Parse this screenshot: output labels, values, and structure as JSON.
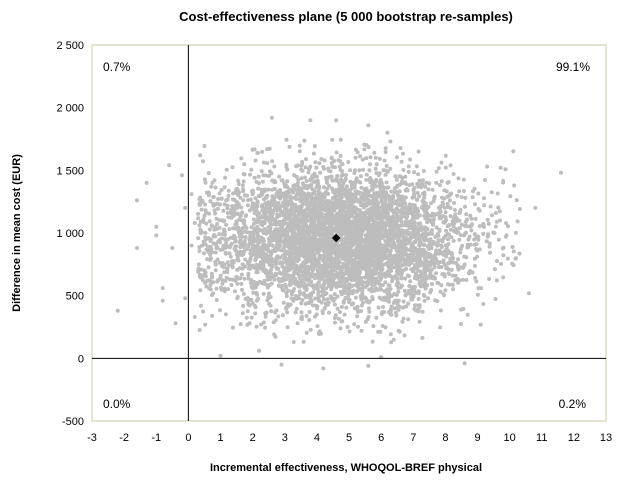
{
  "chart_data": {
    "type": "scatter",
    "title": "Cost-effectiveness plane (5 000 bootstrap re-samples)",
    "xlabel": "Incremental effectiveness, WHOQOL-BREF physical",
    "ylabel": "Difference in mean cost (EUR)",
    "xlim": [
      -3,
      13
    ],
    "ylim": [
      -500,
      2500
    ],
    "x_ticks": [
      "-3",
      "-2",
      "-1",
      "0",
      "1",
      "2",
      "3",
      "4",
      "5",
      "6",
      "7",
      "8",
      "9",
      "10",
      "11",
      "12",
      "13"
    ],
    "y_ticks": [
      "-500",
      "0",
      "500",
      "1 000",
      "1 500",
      "2 000",
      "2 500"
    ],
    "grid": false,
    "quadrant_labels": {
      "top_left": "0.7%",
      "top_right": "99.1%",
      "bottom_left": "0.0%",
      "bottom_right": "0.2%"
    },
    "bootstrap_samples": 5000,
    "cloud_mean": {
      "x": 4.7,
      "y": 950
    },
    "cloud_sd": {
      "x": 2.0,
      "y": 280
    },
    "point_estimate": {
      "x": 4.6,
      "y": 960
    },
    "colors": {
      "points": "#bdbdbd",
      "estimate": "#000000",
      "frame": "#c8c8a0",
      "axis": "#000000"
    },
    "outliers": [
      {
        "x": -2.2,
        "y": 380
      },
      {
        "x": -1.6,
        "y": 880
      },
      {
        "x": -1.6,
        "y": 1260
      },
      {
        "x": -1.3,
        "y": 1400
      },
      {
        "x": -1.0,
        "y": 980
      },
      {
        "x": -1.0,
        "y": 1050
      },
      {
        "x": -0.8,
        "y": 560
      },
      {
        "x": -0.8,
        "y": 460
      },
      {
        "x": -0.6,
        "y": 1540
      },
      {
        "x": -0.5,
        "y": 880
      },
      {
        "x": -0.4,
        "y": 280
      },
      {
        "x": -0.2,
        "y": 1460
      },
      {
        "x": -0.1,
        "y": 480
      },
      {
        "x": -0.1,
        "y": 1200
      },
      {
        "x": 0.2,
        "y": 1080
      },
      {
        "x": 0.2,
        "y": 330
      },
      {
        "x": 0.1,
        "y": 1310
      },
      {
        "x": 0.1,
        "y": 900
      },
      {
        "x": 11.6,
        "y": 1480
      },
      {
        "x": 10.8,
        "y": 1200
      },
      {
        "x": 10.6,
        "y": 520
      },
      {
        "x": 10.2,
        "y": 800
      },
      {
        "x": 9.7,
        "y": 1100
      },
      {
        "x": 9.3,
        "y": 1530
      },
      {
        "x": 3.8,
        "y": 1900
      },
      {
        "x": 4.6,
        "y": 1900
      },
      {
        "x": 5.6,
        "y": 1860
      },
      {
        "x": 2.6,
        "y": 1920
      },
      {
        "x": 6.2,
        "y": 1800
      },
      {
        "x": 4.2,
        "y": -80
      },
      {
        "x": 5.6,
        "y": -60
      },
      {
        "x": 1.0,
        "y": 20
      },
      {
        "x": 2.9,
        "y": -50
      },
      {
        "x": 6.0,
        "y": 10
      },
      {
        "x": 8.6,
        "y": -40
      },
      {
        "x": 2.2,
        "y": 60
      }
    ]
  }
}
